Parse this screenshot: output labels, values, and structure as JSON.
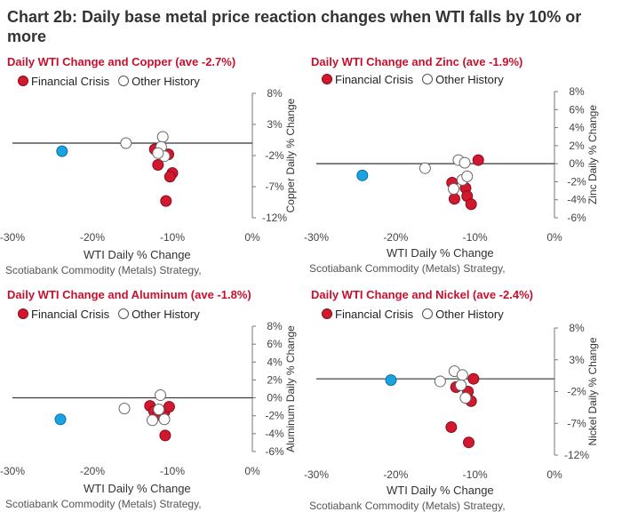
{
  "title": "Chart 2b:  Daily base metal price reaction changes when WTI falls by 10% or more",
  "legend": {
    "financial": "Financial Crisis",
    "other": "Other History"
  },
  "xlabel": "WTI Daily % Change",
  "source": "Scotiabank Commodity (Metals) Strategy,",
  "colors": {
    "red": "#d0182f",
    "blue": "#1aa3e0",
    "title_red": "#c8102e"
  },
  "chart_data": [
    {
      "type": "scatter",
      "title": "Daily WTI Change and Copper (ave -2.7%)",
      "ylabel": "Copper Daily % Change",
      "xlim": [
        -30,
        0
      ],
      "ylim": [
        -12,
        8
      ],
      "xticks": [
        -30,
        -20,
        -10,
        0
      ],
      "xtick_labels": [
        "-30%",
        "-20%",
        "-10%",
        "0%"
      ],
      "yticks": [
        8,
        3,
        -2,
        -7,
        -12
      ],
      "ytick_labels": [
        "8%",
        "3%",
        "-2%",
        "-7%",
        "-12%"
      ],
      "series": [
        {
          "name": "Financial Crisis",
          "points": [
            [
              -12.2,
              -1.0
            ],
            [
              -11.8,
              -3.5
            ],
            [
              -10.5,
              -1.8
            ],
            [
              -10.0,
              -4.8
            ],
            [
              -10.3,
              -5.4
            ],
            [
              -10.8,
              -9.3
            ]
          ]
        },
        {
          "name": "Other History",
          "points": [
            [
              -15.8,
              0.0
            ],
            [
              -11.2,
              1.0
            ],
            [
              -11.4,
              -0.6
            ],
            [
              -11.0,
              -2.1
            ],
            [
              -11.8,
              -1.6
            ]
          ]
        },
        {
          "name": "Highlight",
          "points": [
            [
              -23.8,
              -1.3
            ]
          ]
        }
      ]
    },
    {
      "type": "scatter",
      "title": "Daily WTI Change and Zinc (ave -1.9%)",
      "ylabel": "Zinc Daily % Change",
      "xlim": [
        -30,
        0
      ],
      "ylim": [
        -6,
        8
      ],
      "xticks": [
        -30,
        -20,
        -10,
        0
      ],
      "xtick_labels": [
        "-30%",
        "-20%",
        "-10%",
        "0%"
      ],
      "yticks": [
        8,
        6,
        4,
        2,
        0,
        -2,
        -4,
        -6
      ],
      "ytick_labels": [
        "8%",
        "6%",
        "4%",
        "2%",
        "0%",
        "-2%",
        "-4%",
        "-6%"
      ],
      "series": [
        {
          "name": "Financial Crisis",
          "points": [
            [
              -9.6,
              0.4
            ],
            [
              -12.9,
              -2.1
            ],
            [
              -11.2,
              -2.7
            ],
            [
              -11.0,
              -3.6
            ],
            [
              -12.6,
              -3.9
            ],
            [
              -10.5,
              -4.5
            ]
          ]
        },
        {
          "name": "Other History",
          "points": [
            [
              -16.3,
              -0.5
            ],
            [
              -12.1,
              0.4
            ],
            [
              -11.3,
              0.1
            ],
            [
              -11.6,
              -1.8
            ],
            [
              -11.0,
              -1.4
            ],
            [
              -12.7,
              -2.8
            ]
          ]
        },
        {
          "name": "Highlight",
          "points": [
            [
              -24.2,
              -1.3
            ]
          ]
        }
      ]
    },
    {
      "type": "scatter",
      "title": "Daily WTI Change and Aluminum (ave -1.8%)",
      "ylabel": "Aluminum Daily % Change",
      "xlim": [
        -30,
        0
      ],
      "ylim": [
        -6,
        8
      ],
      "xticks": [
        -30,
        -20,
        -10,
        0
      ],
      "xtick_labels": [
        "-30%",
        "-20%",
        "-10%",
        "0%"
      ],
      "yticks": [
        8,
        6,
        4,
        2,
        0,
        -2,
        -4,
        -6
      ],
      "ytick_labels": [
        "8%",
        "6%",
        "4%",
        "2%",
        "0%",
        "-2%",
        "-4%",
        "-6%"
      ],
      "series": [
        {
          "name": "Financial Crisis",
          "points": [
            [
              -12.8,
              -0.9
            ],
            [
              -12.3,
              -1.5
            ],
            [
              -11.0,
              -1.6
            ],
            [
              -10.4,
              -1.0
            ],
            [
              -11.8,
              -1.9
            ],
            [
              -10.9,
              -4.2
            ]
          ]
        },
        {
          "name": "Other History",
          "points": [
            [
              -16.0,
              -1.2
            ],
            [
              -11.5,
              0.3
            ],
            [
              -12.5,
              -2.5
            ],
            [
              -11.7,
              -1.3
            ],
            [
              -11.0,
              -2.4
            ]
          ]
        },
        {
          "name": "Highlight",
          "points": [
            [
              -24.0,
              -2.4
            ]
          ]
        }
      ]
    },
    {
      "type": "scatter",
      "title": "Daily WTI Change and Nickel (ave -2.4%)",
      "ylabel": "Nickel Daily % Change",
      "xlim": [
        -30,
        0
      ],
      "ylim": [
        -12,
        8
      ],
      "xticks": [
        -30,
        -20,
        -10,
        0
      ],
      "xtick_labels": [
        "-30%",
        "-20%",
        "-10%",
        "0%"
      ],
      "yticks": [
        8,
        3,
        -2,
        -7,
        -12
      ],
      "ytick_labels": [
        "8%",
        "3%",
        "-2%",
        "-7%",
        "-12%"
      ],
      "series": [
        {
          "name": "Financial Crisis",
          "points": [
            [
              -10.2,
              0.0
            ],
            [
              -12.4,
              -1.3
            ],
            [
              -10.9,
              -2.0
            ],
            [
              -10.5,
              -3.5
            ],
            [
              -13.0,
              -7.6
            ],
            [
              -10.8,
              -10.0
            ]
          ]
        },
        {
          "name": "Other History",
          "points": [
            [
              -14.4,
              -0.4
            ],
            [
              -12.6,
              1.2
            ],
            [
              -11.6,
              0.6
            ],
            [
              -11.8,
              -1.0
            ],
            [
              -11.2,
              -3.0
            ]
          ]
        },
        {
          "name": "Highlight",
          "points": [
            [
              -20.6,
              -0.2
            ]
          ]
        }
      ]
    }
  ]
}
